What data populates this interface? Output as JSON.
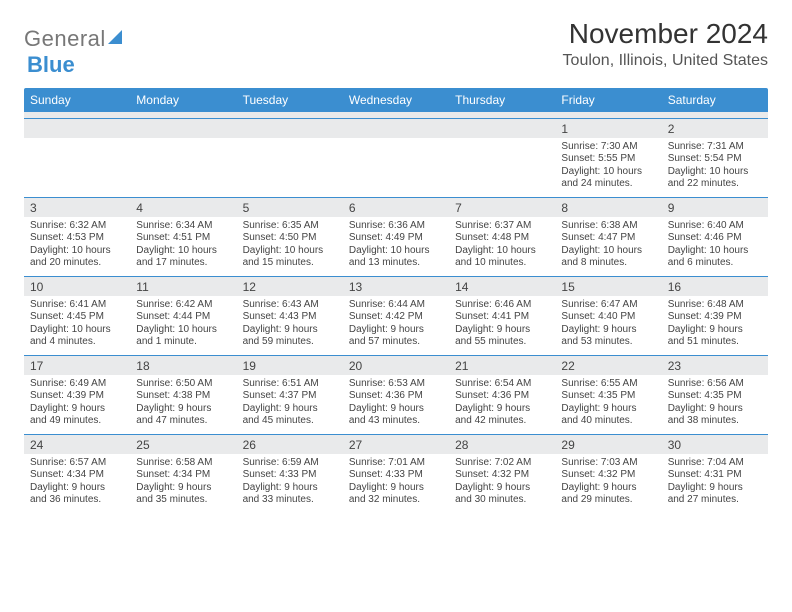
{
  "brand": {
    "part1": "General",
    "part2": "Blue"
  },
  "title": "November 2024",
  "location": "Toulon, Illinois, United States",
  "colors": {
    "accent": "#3b8ed0",
    "row_bg": "#e9eaeb",
    "text": "#333333",
    "muted": "#555555"
  },
  "daysOfWeek": [
    "Sunday",
    "Monday",
    "Tuesday",
    "Wednesday",
    "Thursday",
    "Friday",
    "Saturday"
  ],
  "weeks": [
    {
      "nums": [
        "",
        "",
        "",
        "",
        "",
        "1",
        "2"
      ],
      "infos": [
        "",
        "",
        "",
        "",
        "",
        "Sunrise: 7:30 AM\nSunset: 5:55 PM\nDaylight: 10 hours and 24 minutes.",
        "Sunrise: 7:31 AM\nSunset: 5:54 PM\nDaylight: 10 hours and 22 minutes."
      ]
    },
    {
      "nums": [
        "3",
        "4",
        "5",
        "6",
        "7",
        "8",
        "9"
      ],
      "infos": [
        "Sunrise: 6:32 AM\nSunset: 4:53 PM\nDaylight: 10 hours and 20 minutes.",
        "Sunrise: 6:34 AM\nSunset: 4:51 PM\nDaylight: 10 hours and 17 minutes.",
        "Sunrise: 6:35 AM\nSunset: 4:50 PM\nDaylight: 10 hours and 15 minutes.",
        "Sunrise: 6:36 AM\nSunset: 4:49 PM\nDaylight: 10 hours and 13 minutes.",
        "Sunrise: 6:37 AM\nSunset: 4:48 PM\nDaylight: 10 hours and 10 minutes.",
        "Sunrise: 6:38 AM\nSunset: 4:47 PM\nDaylight: 10 hours and 8 minutes.",
        "Sunrise: 6:40 AM\nSunset: 4:46 PM\nDaylight: 10 hours and 6 minutes."
      ]
    },
    {
      "nums": [
        "10",
        "11",
        "12",
        "13",
        "14",
        "15",
        "16"
      ],
      "infos": [
        "Sunrise: 6:41 AM\nSunset: 4:45 PM\nDaylight: 10 hours and 4 minutes.",
        "Sunrise: 6:42 AM\nSunset: 4:44 PM\nDaylight: 10 hours and 1 minute.",
        "Sunrise: 6:43 AM\nSunset: 4:43 PM\nDaylight: 9 hours and 59 minutes.",
        "Sunrise: 6:44 AM\nSunset: 4:42 PM\nDaylight: 9 hours and 57 minutes.",
        "Sunrise: 6:46 AM\nSunset: 4:41 PM\nDaylight: 9 hours and 55 minutes.",
        "Sunrise: 6:47 AM\nSunset: 4:40 PM\nDaylight: 9 hours and 53 minutes.",
        "Sunrise: 6:48 AM\nSunset: 4:39 PM\nDaylight: 9 hours and 51 minutes."
      ]
    },
    {
      "nums": [
        "17",
        "18",
        "19",
        "20",
        "21",
        "22",
        "23"
      ],
      "infos": [
        "Sunrise: 6:49 AM\nSunset: 4:39 PM\nDaylight: 9 hours and 49 minutes.",
        "Sunrise: 6:50 AM\nSunset: 4:38 PM\nDaylight: 9 hours and 47 minutes.",
        "Sunrise: 6:51 AM\nSunset: 4:37 PM\nDaylight: 9 hours and 45 minutes.",
        "Sunrise: 6:53 AM\nSunset: 4:36 PM\nDaylight: 9 hours and 43 minutes.",
        "Sunrise: 6:54 AM\nSunset: 4:36 PM\nDaylight: 9 hours and 42 minutes.",
        "Sunrise: 6:55 AM\nSunset: 4:35 PM\nDaylight: 9 hours and 40 minutes.",
        "Sunrise: 6:56 AM\nSunset: 4:35 PM\nDaylight: 9 hours and 38 minutes."
      ]
    },
    {
      "nums": [
        "24",
        "25",
        "26",
        "27",
        "28",
        "29",
        "30"
      ],
      "infos": [
        "Sunrise: 6:57 AM\nSunset: 4:34 PM\nDaylight: 9 hours and 36 minutes.",
        "Sunrise: 6:58 AM\nSunset: 4:34 PM\nDaylight: 9 hours and 35 minutes.",
        "Sunrise: 6:59 AM\nSunset: 4:33 PM\nDaylight: 9 hours and 33 minutes.",
        "Sunrise: 7:01 AM\nSunset: 4:33 PM\nDaylight: 9 hours and 32 minutes.",
        "Sunrise: 7:02 AM\nSunset: 4:32 PM\nDaylight: 9 hours and 30 minutes.",
        "Sunrise: 7:03 AM\nSunset: 4:32 PM\nDaylight: 9 hours and 29 minutes.",
        "Sunrise: 7:04 AM\nSunset: 4:31 PM\nDaylight: 9 hours and 27 minutes."
      ]
    }
  ]
}
